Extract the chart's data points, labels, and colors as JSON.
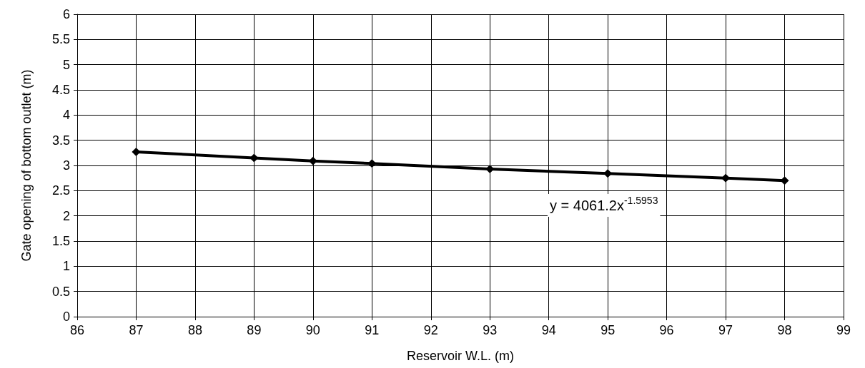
{
  "chart_data": {
    "type": "line",
    "xlabel": "Reservoir W.L. (m)",
    "ylabel": "Gate opening of bottom outlet (m)",
    "x": [
      87,
      89,
      90,
      91,
      93,
      95,
      97,
      98
    ],
    "series": [
      {
        "color": "#000000",
        "values": [
          3.27,
          3.15,
          3.09,
          3.04,
          2.93,
          2.84,
          2.75,
          2.7
        ]
      }
    ],
    "xlim": [
      86,
      99
    ],
    "xticks": [
      86,
      87,
      88,
      89,
      90,
      91,
      92,
      93,
      94,
      95,
      96,
      97,
      98,
      99
    ],
    "ylim": [
      0,
      6
    ],
    "yticks": [
      0,
      0.5,
      1,
      1.5,
      2,
      2.5,
      3,
      3.5,
      4,
      4.5,
      5,
      5.5,
      6
    ],
    "grid": true,
    "marker": "diamond",
    "line_style": "solid",
    "annotations": [
      "y = 4061.2x$^{-1.5953}$"
    ]
  }
}
